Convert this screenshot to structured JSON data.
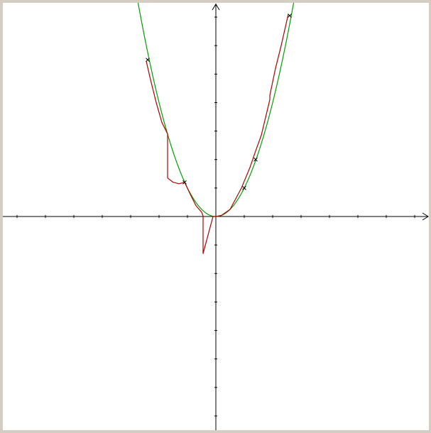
{
  "window": {
    "frame_color": "#d4cdc4",
    "plot_background": "#ffffff"
  },
  "chart_data": {
    "type": "line",
    "title": "",
    "xlabel": "",
    "ylabel": "",
    "grid": false,
    "tick_labels": false,
    "xlim": [
      -7.5,
      7.5
    ],
    "ylim": [
      -7.5,
      7.5
    ],
    "axis_color": "#000000",
    "series": [
      {
        "role": "reference-curve",
        "function": "x^2",
        "color": "#00a000",
        "x_range": [
          -2.8,
          2.8
        ]
      },
      {
        "role": "approximation",
        "color": "#b00000",
        "x": [
          -2.45,
          -2.3,
          -2.1,
          -1.9,
          -1.7,
          -1.7,
          -1.5,
          -1.3,
          -1.1,
          -0.9,
          -0.7,
          -0.5,
          -0.45,
          -0.45,
          -0.1,
          0.0,
          0.2,
          0.5,
          0.9,
          1.2,
          1.4,
          1.6,
          1.9,
          1.9,
          2.1,
          2.3,
          2.55
        ],
        "y": [
          5.45,
          4.8,
          4.0,
          3.3,
          2.9,
          1.35,
          1.2,
          1.15,
          1.2,
          0.78,
          0.38,
          0.15,
          0.02,
          -1.3,
          0.0,
          0.0,
          0.04,
          0.25,
          1.0,
          1.72,
          2.3,
          2.85,
          4.1,
          4.25,
          5.2,
          6.0,
          7.1
        ]
      }
    ],
    "markers": {
      "symbol": "x",
      "color": "#000000",
      "x": [
        -2.4,
        -1.1,
        1.0,
        1.4,
        2.6
      ],
      "y": [
        5.5,
        1.2,
        1.0,
        2.0,
        7.05
      ]
    }
  }
}
